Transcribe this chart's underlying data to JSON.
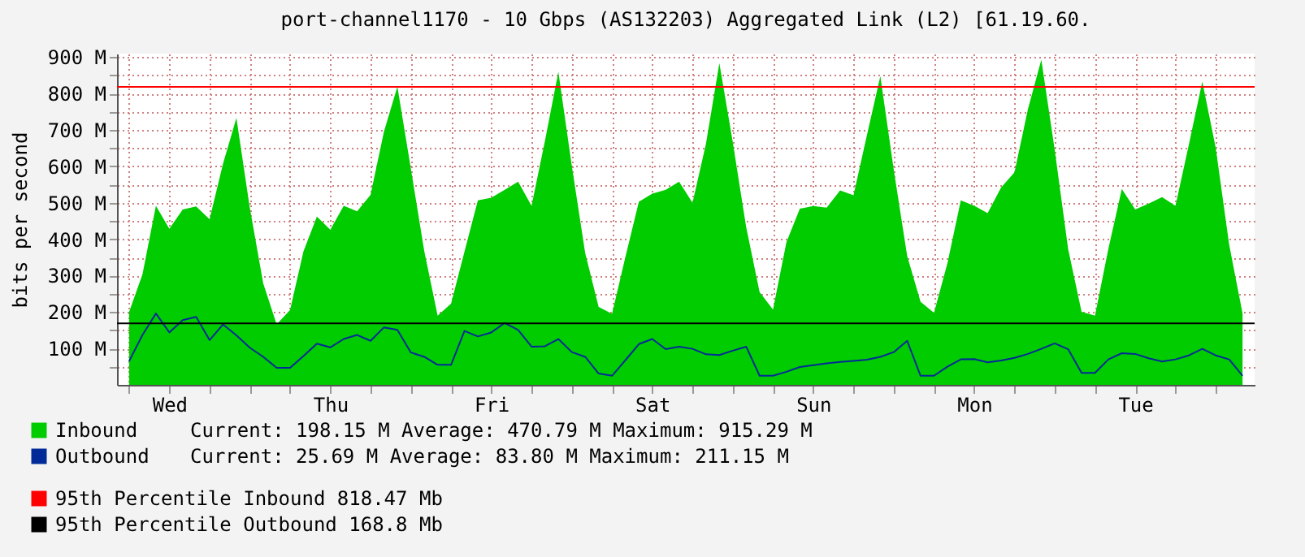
{
  "chart_data": {
    "type": "area",
    "title": "port-channel1170 - 10 Gbps (AS132203) Aggregated Link (L2) [61.19.60.",
    "ylabel": "bits per second",
    "categories": [
      null,
      null,
      null,
      "Wed",
      null,
      null,
      null,
      null,
      null,
      null,
      null,
      null,
      null,
      null,
      null,
      "Thu",
      null,
      null,
      null,
      null,
      null,
      null,
      null,
      null,
      null,
      null,
      null,
      "Fri",
      null,
      null,
      null,
      null,
      null,
      null,
      null,
      null,
      null,
      null,
      null,
      "Sat",
      null,
      null,
      null,
      null,
      null,
      null,
      null,
      null,
      null,
      null,
      null,
      "Sun",
      null,
      null,
      null,
      null,
      null,
      null,
      null,
      null,
      null,
      null,
      null,
      "Mon",
      null,
      null,
      null,
      null,
      null,
      null,
      null,
      null,
      null,
      null,
      null,
      "Tue",
      null,
      null,
      null,
      null,
      null,
      null,
      null,
      null
    ],
    "ylim": [
      0,
      910
    ],
    "yticks": [
      {
        "value": 50,
        "label": null
      },
      {
        "value": 100,
        "label": "100 M"
      },
      {
        "value": 150,
        "label": null
      },
      {
        "value": 200,
        "label": "200 M"
      },
      {
        "value": 250,
        "label": null
      },
      {
        "value": 300,
        "label": "300 M"
      },
      {
        "value": 350,
        "label": null
      },
      {
        "value": 400,
        "label": "400 M"
      },
      {
        "value": 450,
        "label": null
      },
      {
        "value": 500,
        "label": "500 M"
      },
      {
        "value": 550,
        "label": null
      },
      {
        "value": 600,
        "label": "600 M"
      },
      {
        "value": 650,
        "label": null
      },
      {
        "value": 700,
        "label": "700 M"
      },
      {
        "value": 750,
        "label": null
      },
      {
        "value": 800,
        "label": "800 M"
      },
      {
        "value": 850,
        "label": null
      },
      {
        "value": 900,
        "label": "900 M"
      }
    ],
    "grid": true,
    "legend": "bottom",
    "series": [
      {
        "name": "Inbound",
        "color": "#00cc00",
        "values": [
          200,
          304,
          492,
          429,
          482,
          490,
          455,
          607,
          733,
          486,
          279,
          166,
          206,
          367,
          462,
          426,
          492,
          477,
          522,
          696,
          819,
          595,
          368,
          190,
          223,
          366,
          507,
          514,
          536,
          558,
          492,
          670,
          860,
          602,
          362,
          214,
          195,
          352,
          503,
          525,
          536,
          558,
          500,
          662,
          884,
          667,
          433,
          255,
          207,
          392,
          484,
          491,
          487,
          534,
          521,
          686,
          848,
          591,
          354,
          228,
          198,
          334,
          507,
          492,
          472,
          542,
          584,
          757,
          893,
          645,
          373,
          201,
          190,
          374,
          538,
          482,
          498,
          516,
          492,
          660,
          833,
          651,
          386,
          196
        ]
      },
      {
        "name": "Outbound",
        "type": "line",
        "color": "#002a97",
        "values": [
          65,
          137,
          196,
          144,
          178,
          187,
          123,
          166,
          136,
          102,
          77,
          47,
          47,
          79,
          113,
          103,
          126,
          137,
          121,
          158,
          151,
          89,
          77,
          55,
          55,
          148,
          133,
          144,
          170,
          151,
          105,
          106,
          126,
          90,
          77,
          31,
          25,
          68,
          112,
          126,
          98,
          105,
          99,
          84,
          82,
          94,
          105,
          25,
          25,
          36,
          49,
          54,
          59,
          63,
          66,
          69,
          77,
          90,
          121,
          25,
          25,
          50,
          70,
          71,
          62,
          67,
          74,
          85,
          99,
          114,
          98,
          33,
          33,
          70,
          87,
          85,
          73,
          64,
          70,
          81,
          99,
          81,
          70,
          25
        ]
      }
    ],
    "annotations": [
      "Current:  198.15 M  Average:  470.79 M  Maximum:  915.29 M",
      "Current:   25.69 M  Average:   83.80 M  Maximum:  211.15 M"
    ],
    "ref_lines": [
      {
        "axis": "y",
        "value": 818.47,
        "label": "95th Percentile Inbound  818.47 Mb",
        "color": "#ff0000"
      },
      {
        "axis": "y",
        "value": 168.8,
        "label": "95th Percentile Outbound  168.8 Mb",
        "color": "#000000"
      }
    ]
  }
}
